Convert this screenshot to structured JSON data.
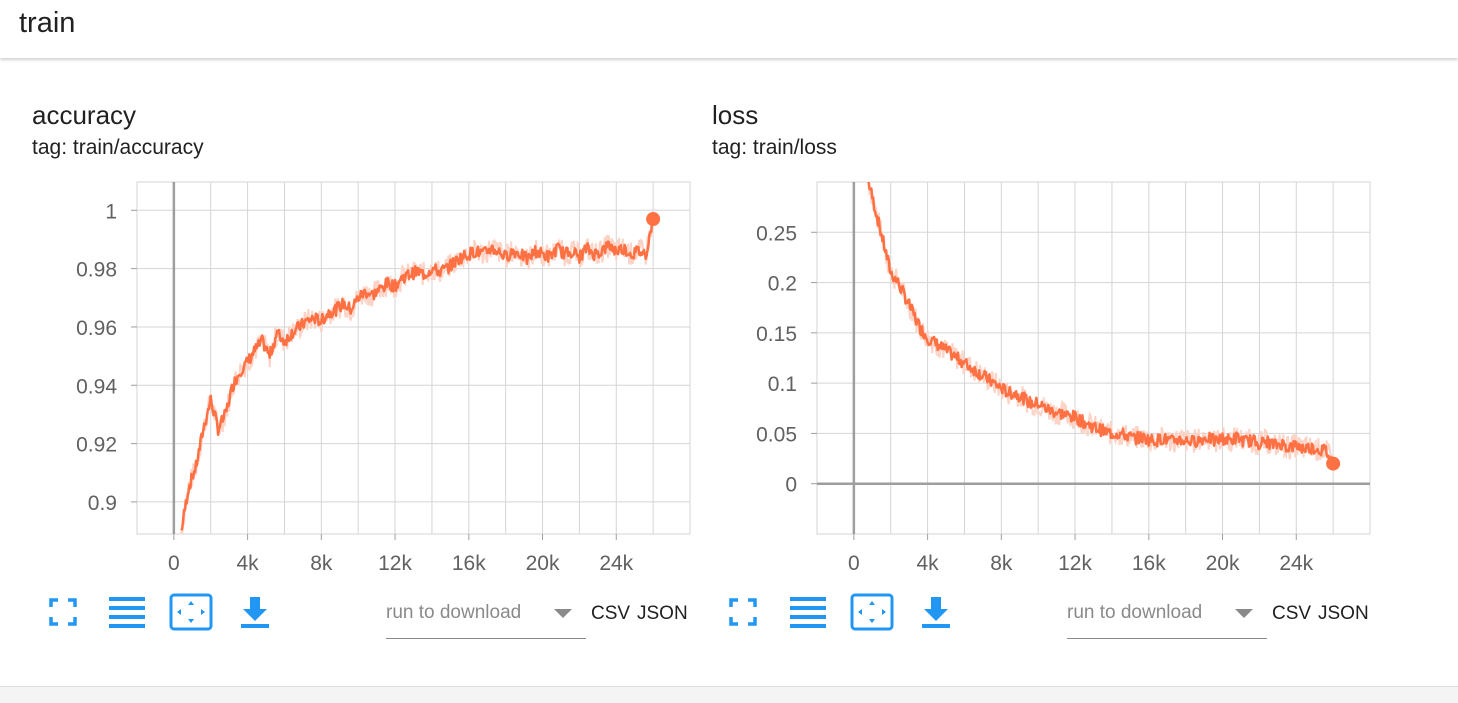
{
  "header": {
    "title": "train"
  },
  "cards": [
    {
      "title": "accuracy",
      "tag": "tag: train/accuracy",
      "run_placeholder": "run to download",
      "csv_label": "CSV",
      "json_label": "JSON"
    },
    {
      "title": "loss",
      "tag": "tag: train/loss",
      "run_placeholder": "run to download",
      "csv_label": "CSV",
      "json_label": "JSON"
    }
  ],
  "colors": {
    "accent": "#ff7043",
    "raw": "#fcd4c7",
    "icon": "#2196f3",
    "grid": "#d5d5d5",
    "axis": "#9e9e9e"
  },
  "icons": [
    "fullscreen-icon",
    "toggle-log-scale-icon",
    "fit-domain-icon",
    "download-icon"
  ],
  "chart_data": [
    {
      "type": "line",
      "title": "accuracy",
      "xlabel": "",
      "ylabel": "",
      "xlim": [
        -2000,
        28000
      ],
      "ylim": [
        0.889,
        1.0097
      ],
      "x_ticks": [
        0,
        4000,
        8000,
        12000,
        16000,
        20000,
        24000
      ],
      "x_tick_labels": [
        "0",
        "4k",
        "8k",
        "12k",
        "16k",
        "20k",
        "24k"
      ],
      "y_ticks": [
        0.9,
        0.92,
        0.94,
        0.96,
        0.98,
        1
      ],
      "y_tick_labels": [
        "0.9",
        "0.92",
        "0.94",
        "0.96",
        "0.98",
        "1"
      ],
      "grid": true,
      "series": [
        {
          "x": [
            400,
            800,
            1200,
            1600,
            2000,
            2400,
            2800,
            3200,
            3600,
            4000,
            4400,
            4800,
            5200,
            5600,
            6000,
            6400,
            6800,
            7200,
            7600,
            8000,
            8400,
            8800,
            9200,
            9600,
            10000,
            10400,
            10800,
            11200,
            11600,
            12000,
            12400,
            12800,
            13200,
            13600,
            14000,
            14400,
            14800,
            15200,
            15600,
            16000,
            16400,
            16800,
            17200,
            17600,
            18000,
            18400,
            18800,
            19200,
            19600,
            20000,
            20400,
            20800,
            21200,
            21600,
            22000,
            22400,
            22800,
            23200,
            23600,
            24000,
            24400,
            24800,
            25200,
            25600,
            26000
          ],
          "y": [
            0.89,
            0.905,
            0.912,
            0.925,
            0.935,
            0.925,
            0.93,
            0.94,
            0.945,
            0.948,
            0.952,
            0.955,
            0.95,
            0.958,
            0.955,
            0.958,
            0.96,
            0.962,
            0.963,
            0.962,
            0.965,
            0.966,
            0.968,
            0.966,
            0.97,
            0.972,
            0.971,
            0.973,
            0.975,
            0.974,
            0.977,
            0.978,
            0.979,
            0.978,
            0.98,
            0.979,
            0.98,
            0.982,
            0.984,
            0.985,
            0.986,
            0.985,
            0.987,
            0.986,
            0.984,
            0.986,
            0.985,
            0.983,
            0.986,
            0.985,
            0.984,
            0.987,
            0.985,
            0.986,
            0.984,
            0.987,
            0.985,
            0.986,
            0.988,
            0.986,
            0.987,
            0.985,
            0.986,
            0.985,
            0.997
          ]
        }
      ]
    },
    {
      "type": "line",
      "title": "loss",
      "xlabel": "",
      "ylabel": "",
      "xlim": [
        -2000,
        28000
      ],
      "ylim": [
        -0.05,
        0.3
      ],
      "x_ticks": [
        0,
        4000,
        8000,
        12000,
        16000,
        20000,
        24000
      ],
      "x_tick_labels": [
        "0",
        "4k",
        "8k",
        "12k",
        "16k",
        "20k",
        "24k"
      ],
      "y_ticks": [
        0,
        0.05,
        0.1,
        0.15,
        0.2,
        0.25
      ],
      "y_tick_labels": [
        "0",
        "0.05",
        "0.1",
        "0.15",
        "0.2",
        "0.25"
      ],
      "grid": true,
      "series": [
        {
          "x": [
            800,
            1200,
            1600,
            2000,
            2400,
            2800,
            3200,
            3600,
            4000,
            4400,
            4800,
            5200,
            5600,
            6000,
            6400,
            6800,
            7200,
            7600,
            8000,
            8400,
            8800,
            9200,
            9600,
            10000,
            10400,
            10800,
            11200,
            11600,
            12000,
            12400,
            12800,
            13200,
            13600,
            14000,
            14400,
            14800,
            15200,
            15600,
            16000,
            16400,
            16800,
            17200,
            17600,
            18000,
            18400,
            18800,
            19200,
            19600,
            20000,
            20400,
            20800,
            21200,
            21600,
            22000,
            22400,
            22800,
            23200,
            23600,
            24000,
            24400,
            24800,
            25200,
            25600,
            26000
          ],
          "y": [
            0.3,
            0.27,
            0.24,
            0.21,
            0.2,
            0.185,
            0.17,
            0.155,
            0.145,
            0.14,
            0.135,
            0.13,
            0.125,
            0.12,
            0.115,
            0.11,
            0.105,
            0.1,
            0.095,
            0.09,
            0.09,
            0.085,
            0.08,
            0.08,
            0.075,
            0.072,
            0.07,
            0.068,
            0.066,
            0.062,
            0.058,
            0.055,
            0.052,
            0.05,
            0.05,
            0.048,
            0.045,
            0.046,
            0.044,
            0.043,
            0.045,
            0.042,
            0.044,
            0.043,
            0.042,
            0.044,
            0.046,
            0.042,
            0.045,
            0.043,
            0.046,
            0.042,
            0.043,
            0.04,
            0.042,
            0.038,
            0.04,
            0.036,
            0.038,
            0.035,
            0.036,
            0.034,
            0.033,
            0.02
          ]
        }
      ]
    }
  ]
}
